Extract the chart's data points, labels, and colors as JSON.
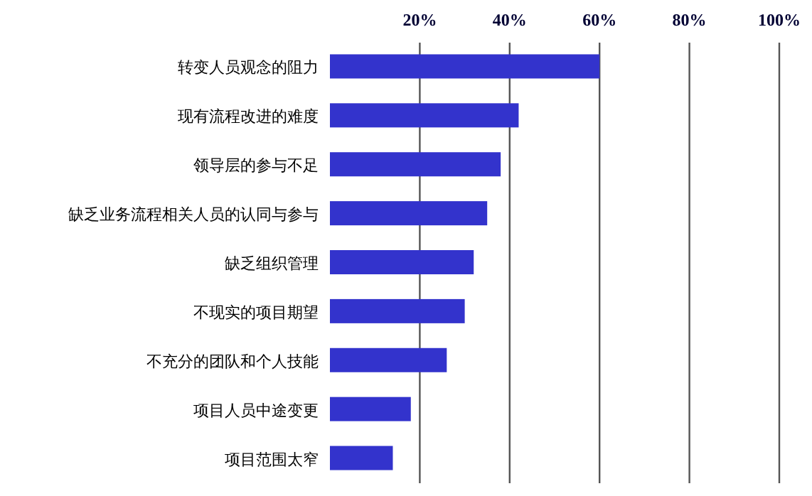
{
  "chart_data": {
    "type": "bar",
    "orientation": "horizontal",
    "categories": [
      "转变人员观念的阻力",
      "现有流程改进的难度",
      "领导层的参与不足",
      "缺乏业务流程相关人员的认同与参与",
      "缺乏组织管理",
      "不现实的项目期望",
      "不充分的团队和个人技能",
      "项目人员中途变更",
      "项目范围太窄"
    ],
    "values": [
      60,
      42,
      38,
      35,
      32,
      30,
      26,
      18,
      14
    ],
    "color": "#3333cc",
    "xlim": [
      0,
      100
    ],
    "xticks": [
      {
        "value": 20,
        "label": "20%"
      },
      {
        "value": 40,
        "label": "40%"
      },
      {
        "value": 60,
        "label": "60%"
      },
      {
        "value": 80,
        "label": "80%"
      },
      {
        "value": 100,
        "label": "100%"
      }
    ],
    "grid": "x"
  }
}
